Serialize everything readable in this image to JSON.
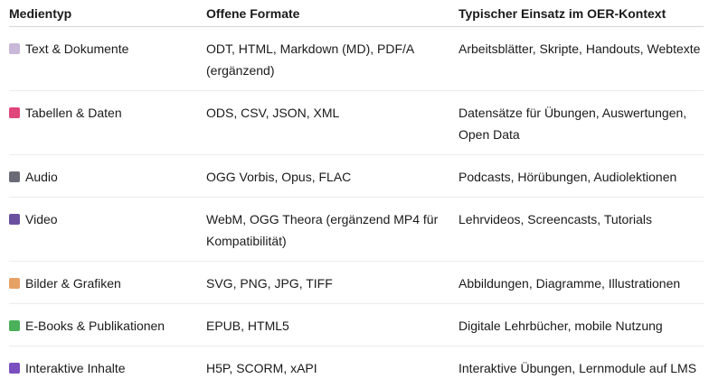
{
  "headers": [
    "Medientyp",
    "Offene Formate",
    "Typischer Einsatz im OER-Kontext"
  ],
  "rows": [
    {
      "icon": "memo-icon",
      "color": "#c9b8d8",
      "type": "Text & Dokumente",
      "formats": "ODT, HTML, Markdown (MD), PDF/A (ergänzend)",
      "use": "Arbeitsblätter, Skripte, Handouts, Webtexte"
    },
    {
      "icon": "bar-chart-icon",
      "color": "#e0457b",
      "type": "Tabellen & Daten",
      "formats": "ODS, CSV, JSON, XML",
      "use": "Datensätze für Übungen, Auswertungen, Open Data"
    },
    {
      "icon": "microphone-icon",
      "color": "#6b6b78",
      "type": "Audio",
      "formats": "OGG Vorbis, Opus, FLAC",
      "use": "Podcasts, Hörübungen, Audiolektionen"
    },
    {
      "icon": "clapper-board-icon",
      "color": "#6a4fa0",
      "type": "Video",
      "formats": "WebM, OGG Theora (ergänzend MP4 für Kompatibilität)",
      "use": "Lehrvideos, Screencasts, Tutorials"
    },
    {
      "icon": "framed-picture-icon",
      "color": "#e6a165",
      "type": "Bilder & Grafiken",
      "formats": "SVG, PNG, JPG, TIFF",
      "use": "Abbildungen, Diagramme, Illustrationen"
    },
    {
      "icon": "books-icon",
      "color": "#4ab05a",
      "type": "E-Books & Publikationen",
      "formats": "EPUB, HTML5",
      "use": "Digitale Lehrbücher, mobile Nutzung"
    },
    {
      "icon": "game-controller-icon",
      "color": "#7a4fc0",
      "type": "Interaktive Inhalte",
      "formats": "H5P, SCORM, xAPI",
      "use": "Interaktive Übungen, Lernmodule auf LMS"
    }
  ]
}
